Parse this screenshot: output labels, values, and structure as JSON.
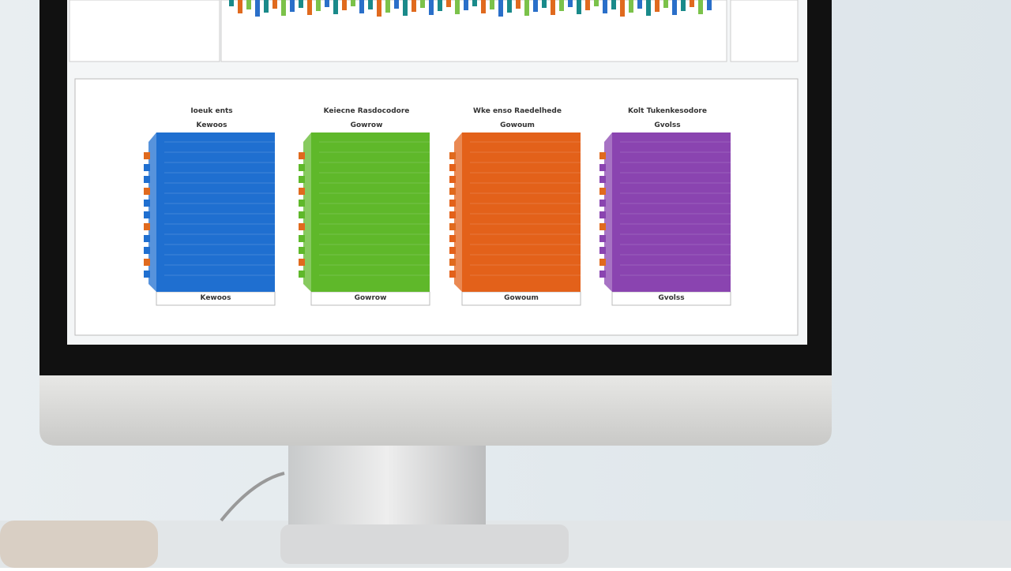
{
  "screen": {
    "panels": [
      {
        "title": "Ioeuk ents",
        "subtitle": "Kewoos",
        "caption": "Kewoos"
      },
      {
        "title": "Keiecne Rasdocodore",
        "subtitle": "Gowrow",
        "caption": "Gowrow"
      },
      {
        "title": "Wke enso Raedelhede",
        "subtitle": "Gowoum",
        "caption": "Gowoum"
      },
      {
        "title": "Kolt Tukenkesodore",
        "subtitle": "Gvolss",
        "caption": "Gvolss"
      }
    ]
  }
}
